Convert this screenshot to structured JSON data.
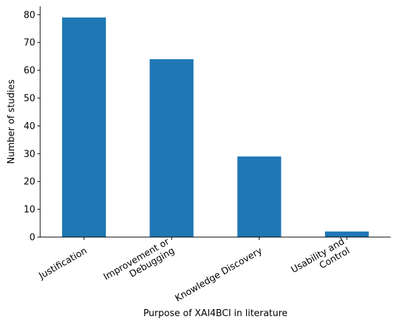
{
  "chart_data": {
    "type": "bar",
    "categories": [
      [
        "Justification"
      ],
      [
        "Improvement or",
        "Debugging"
      ],
      [
        "Knowledge Discovery"
      ],
      [
        "Usability and",
        "Control"
      ]
    ],
    "values": [
      79,
      64,
      29,
      2
    ],
    "title": "",
    "xlabel": "Purpose of XAI4BCI in literature",
    "ylabel": "Number of studies",
    "ylim": [
      0,
      83
    ],
    "yticks": [
      0,
      10,
      20,
      30,
      40,
      50,
      60,
      70,
      80
    ],
    "grid": false,
    "legend": "none",
    "bar_color": "#1f77b4",
    "x_tick_rotation": "30 degrees, right-aligned"
  }
}
